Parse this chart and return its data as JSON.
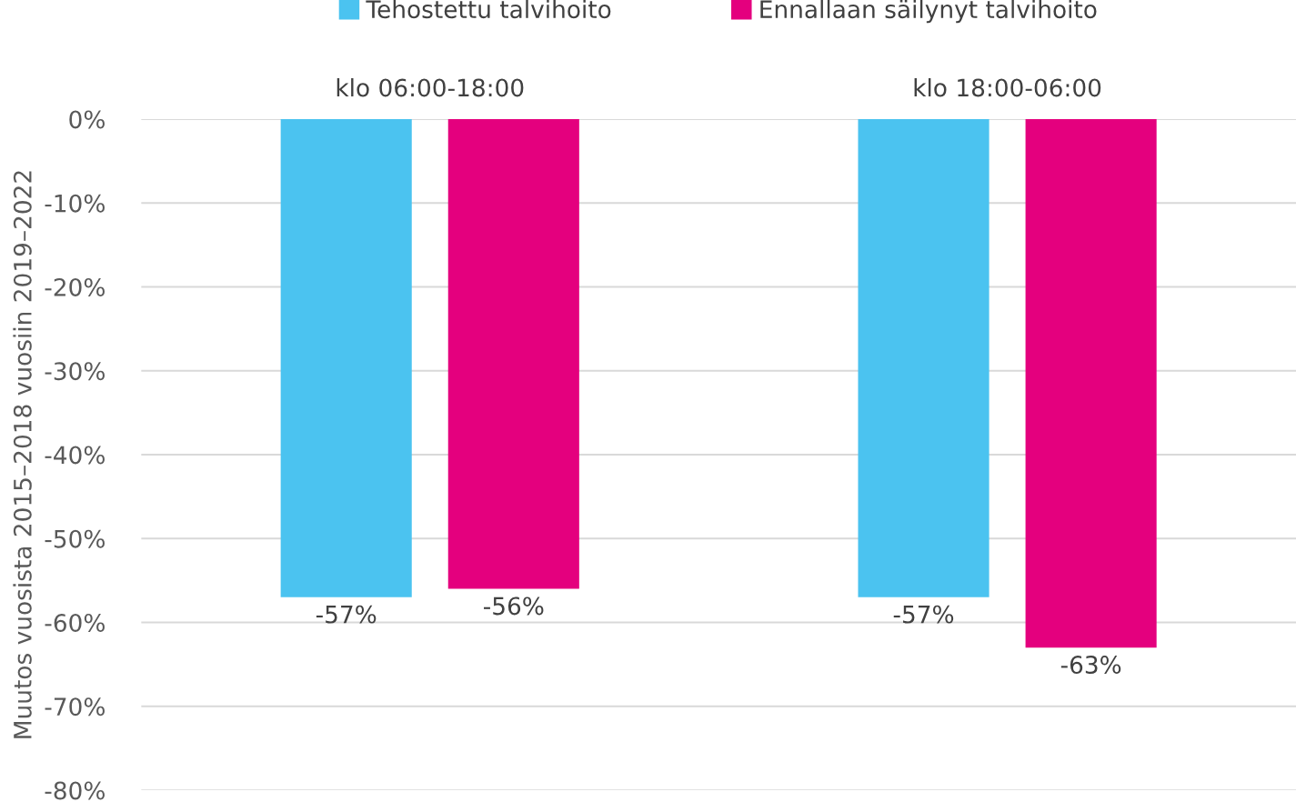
{
  "chart_data": {
    "type": "bar",
    "ylabel": "Muutos vuosista 2015–2018 vuosiin 2019–2022",
    "categories": [
      "klo 06:00-18:00",
      "klo 18:00-06:00"
    ],
    "series": [
      {
        "name": "Tehostettu talvihoito",
        "color": "#4bc3f0",
        "values": [
          -57,
          -57
        ],
        "value_labels": [
          "-57%",
          "-57%"
        ]
      },
      {
        "name": "Ennallaan säilynyt talvihoito",
        "color": "#e4007e",
        "values": [
          -56,
          -63
        ],
        "value_labels": [
          "-56%",
          "-63%"
        ]
      }
    ],
    "ylim": [
      -80,
      0
    ],
    "yticks": [
      {
        "value": -80,
        "label": "-80%"
      },
      {
        "value": -70,
        "label": "-70%"
      },
      {
        "value": -60,
        "label": "-60%"
      },
      {
        "value": -50,
        "label": "-50%"
      },
      {
        "value": -40,
        "label": "-40%"
      },
      {
        "value": -30,
        "label": "-30%"
      },
      {
        "value": -20,
        "label": "-20%"
      },
      {
        "value": -10,
        "label": "-10%"
      },
      {
        "value": 0,
        "label": "0%"
      }
    ],
    "grid": "y",
    "legend": "top"
  }
}
